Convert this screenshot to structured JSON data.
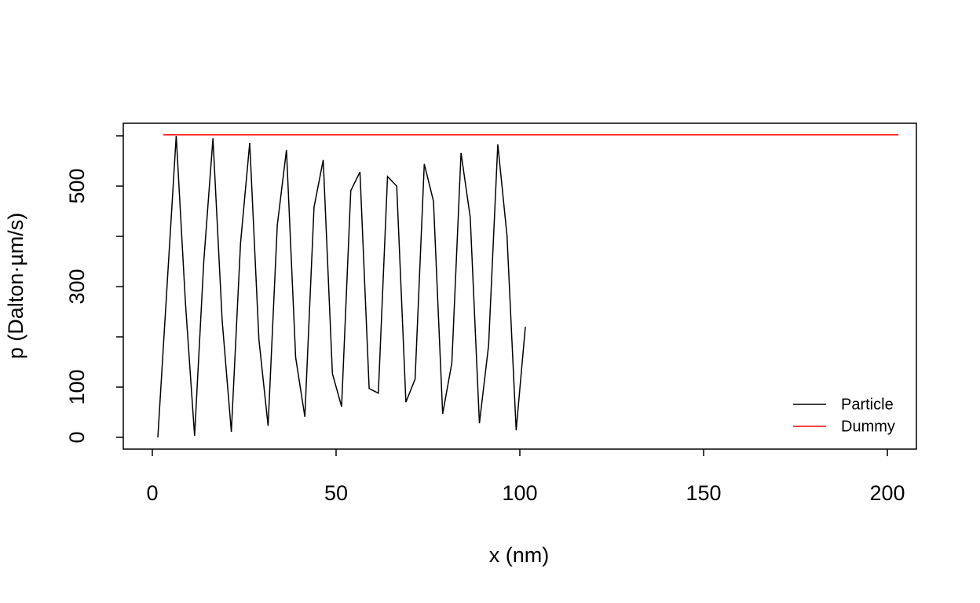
{
  "chart_data": {
    "type": "line",
    "xlabel": "x (nm)",
    "ylabel": "p (Dalton·µm/s)",
    "xlim": [
      -7.9,
      207.9
    ],
    "ylim": [
      -23.4,
      625
    ],
    "xticks": [
      0,
      50,
      100,
      150,
      200
    ],
    "yticks": [
      0,
      100,
      {
        "value": 200,
        "label": null
      },
      300,
      {
        "value": 400,
        "label": null
      },
      500,
      {
        "value": 600,
        "label": null
      }
    ],
    "legend_position": "bottom-right",
    "series": [
      {
        "name": "Particle",
        "color": "#000000",
        "x": [
          1.5,
          4,
          6.5,
          9,
          11.5,
          14,
          16.5,
          19,
          21.5,
          24,
          26.5,
          29,
          31.5,
          34,
          36.5,
          39,
          41.5,
          44,
          46.5,
          49,
          51.5,
          54,
          56.5,
          59,
          61.5,
          64,
          66.5,
          69,
          71.5,
          74,
          76.5,
          79,
          81.5,
          84,
          86.5,
          89,
          91.5,
          94,
          96.5,
          99,
          101.5
        ],
        "values": [
          0,
          300,
          600,
          269,
          3,
          350,
          595,
          233,
          11,
          386,
          586,
          195,
          23,
          422,
          572,
          159,
          41,
          458,
          552,
          127,
          61,
          491,
          528,
          97,
          88,
          519,
          500,
          70,
          116,
          544,
          470,
          47,
          148,
          566,
          438,
          28,
          183,
          583,
          402,
          14,
          220
        ]
      },
      {
        "name": "Dummy",
        "color": "#ff0000",
        "x": [
          3,
          203
        ],
        "values": [
          602,
          602
        ]
      }
    ]
  }
}
